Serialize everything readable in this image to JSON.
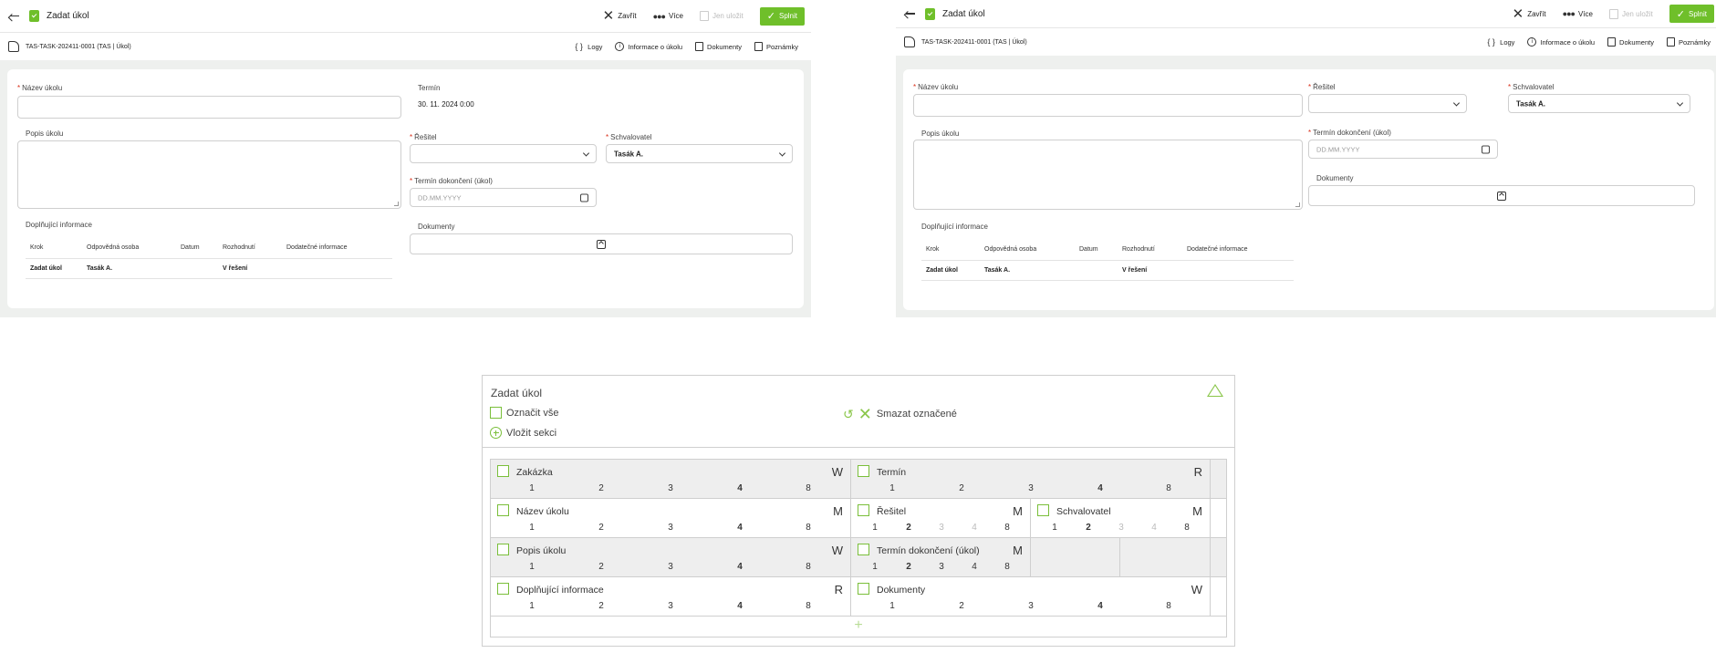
{
  "screens": [
    {
      "topbar": {
        "title": "Zadat úkol",
        "close_label": "Zavřít",
        "more_label": "Více",
        "save_label": "Jen uložit",
        "submit_label": "Splnit"
      },
      "subbar": {
        "case_id": "TAS-TASK-202411-0001 (TAS | Úkol)",
        "logs_label": "Logy",
        "info_label": "Informace o úkolu",
        "documents_label": "Dokumenty",
        "notes_label": "Poznámky"
      },
      "form": {
        "task_name_label": "Název úkolu",
        "deadline_label": "Termín",
        "deadline_value": "30. 11. 2024 0:00",
        "description_label": "Popis úkolu",
        "solver_label": "Řešitel",
        "approver_label": "Schvalovatel",
        "approver_value": "Tasák A.",
        "completion_label": "Termín dokončení (úkol)",
        "completion_placeholder": "DD.MM.YYYY",
        "documents_label": "Dokumenty",
        "additional_label": "Doplňující informace"
      }
    },
    {
      "topbar": {
        "title": "Zadat úkol",
        "close_label": "Zavřít",
        "more_label": "Více",
        "save_label": "Jen uložit",
        "submit_label": "Splnit"
      },
      "subbar": {
        "case_id": "TAS-TASK-202411-0001 (TAS | Úkol)",
        "logs_label": "Logy",
        "info_label": "Informace o úkolu",
        "documents_label": "Dokumenty",
        "notes_label": "Poznámky"
      },
      "form": {
        "task_name_label": "Název úkolu",
        "description_label": "Popis úkolu",
        "solver_label": "Řešitel",
        "approver_label": "Schvalovatel",
        "approver_value": "Tasák A.",
        "completion_label": "Termín dokončení (úkol)",
        "completion_placeholder": "DD.MM.YYYY",
        "documents_label": "Dokumenty",
        "additional_label": "Doplňující informace"
      }
    }
  ],
  "history_table": {
    "headers": [
      "Krok",
      "Odpovědná osoba",
      "Datum",
      "Rozhodnutí",
      "Dodatečné informace"
    ],
    "rows": [
      [
        "Zadat úkol",
        "Tasák A.",
        "",
        "V řešení",
        ""
      ]
    ]
  },
  "designer": {
    "title": "Zadat úkol",
    "select_all_label": "Označit vše",
    "insert_section_label": "Vložit sekci",
    "delete_selected_label": "Smazat označené",
    "cells": {
      "zakazka": {
        "label": "Zakázka",
        "mode": "W",
        "nums": [
          "1",
          "2",
          "3",
          "4",
          "8"
        ]
      },
      "termin": {
        "label": "Termín",
        "mode": "R",
        "nums": [
          "1",
          "2",
          "3",
          "4",
          "8"
        ]
      },
      "nazev": {
        "label": "Název úkolu",
        "mode": "M",
        "nums": [
          "1",
          "2",
          "3",
          "4",
          "8"
        ]
      },
      "resitel": {
        "label": "Řešitel",
        "mode": "M",
        "nums": [
          "1",
          "2",
          "3",
          "4",
          "8"
        ]
      },
      "schvalovatel": {
        "label": "Schvalovatel",
        "mode": "M",
        "nums": [
          "1",
          "2",
          "3",
          "4",
          "8"
        ]
      },
      "popis": {
        "label": "Popis úkolu",
        "mode": "W",
        "nums": [
          "1",
          "2",
          "3",
          "4",
          "8"
        ]
      },
      "termin_dokonceni": {
        "label": "Termín dokončení (úkol)",
        "mode": "M",
        "nums": [
          "1",
          "2",
          "3",
          "4",
          "8"
        ]
      },
      "doplnujici": {
        "label": "Doplňující informace",
        "mode": "R",
        "nums": [
          "1",
          "2",
          "3",
          "4",
          "8"
        ]
      },
      "dokumenty": {
        "label": "Dokumenty",
        "mode": "W",
        "nums": [
          "1",
          "2",
          "3",
          "4",
          "8"
        ]
      }
    }
  },
  "colors": {
    "accent": "#6fbf2a",
    "required": "#d9301a"
  }
}
